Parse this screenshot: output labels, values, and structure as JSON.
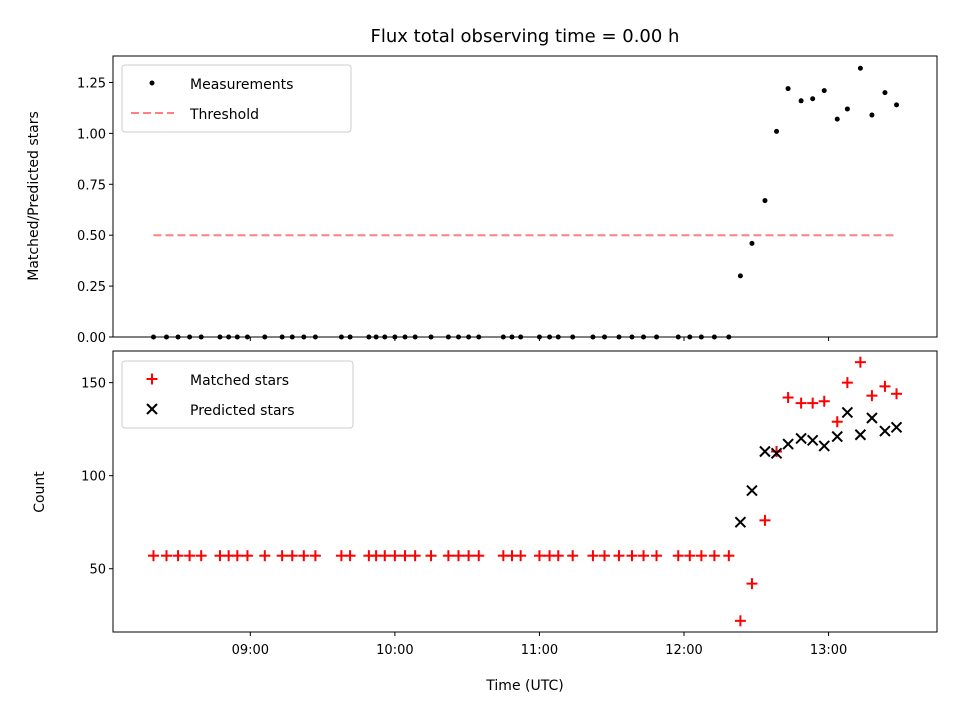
{
  "chart_data": {
    "type": "scatter",
    "title": "Flux total observing time = 0.00 h",
    "xlabel": "Time (UTC)",
    "x_ticks": [
      "09:00",
      "10:00",
      "11:00",
      "12:00",
      "13:00"
    ],
    "x_tick_hours": [
      9,
      10,
      11,
      12,
      13
    ],
    "xlim": [
      8.05,
      13.75
    ],
    "times": [
      8.33,
      8.42,
      8.5,
      8.58,
      8.66,
      8.79,
      8.85,
      8.91,
      8.98,
      9.1,
      9.22,
      9.29,
      9.37,
      9.45,
      9.63,
      9.69,
      9.82,
      9.87,
      9.93,
      10.0,
      10.07,
      10.14,
      10.25,
      10.37,
      10.44,
      10.51,
      10.58,
      10.75,
      10.81,
      10.87,
      11.0,
      11.07,
      11.13,
      11.23,
      11.37,
      11.45,
      11.55,
      11.64,
      11.72,
      11.81,
      11.96,
      12.04,
      12.12,
      12.21,
      12.31,
      12.39,
      12.47,
      12.56,
      12.64,
      12.72,
      12.81,
      12.89,
      12.97,
      13.06,
      13.13,
      13.22,
      13.3,
      13.39,
      13.47
    ],
    "panels": [
      {
        "ylabel": "Matched/Predicted stars",
        "ylim": [
          0,
          1.38
        ],
        "y_ticks": [
          "0.00",
          "0.25",
          "0.50",
          "0.75",
          "1.00",
          "1.25"
        ],
        "y_tick_values": [
          0,
          0.25,
          0.5,
          0.75,
          1.0,
          1.25
        ],
        "series": [
          {
            "name": "Measurements",
            "marker": "dot",
            "color": "#000000",
            "values": [
              0,
              0,
              0,
              0,
              0,
              0,
              0,
              0,
              0,
              0,
              0,
              0,
              0,
              0,
              0,
              0,
              0,
              0,
              0,
              0,
              0,
              0,
              0,
              0,
              0,
              0,
              0,
              0,
              0,
              0,
              0,
              0,
              0,
              0,
              0,
              0,
              0,
              0,
              0,
              0,
              0,
              0,
              0,
              0,
              0,
              0.3,
              0.46,
              0.67,
              1.01,
              1.22,
              1.16,
              1.17,
              1.21,
              1.07,
              1.12,
              1.32,
              1.09,
              1.2,
              1.14
            ]
          },
          {
            "name": "Threshold",
            "marker": "dashed-line",
            "color": "#ff7f7f",
            "x_range": [
              8.33,
              13.47
            ],
            "value": 0.5
          }
        ],
        "legend": "top-left"
      },
      {
        "ylabel": "Count",
        "ylim": [
          16,
          167
        ],
        "y_ticks": [
          "50",
          "100",
          "150"
        ],
        "y_tick_values": [
          50,
          100,
          150
        ],
        "series": [
          {
            "name": "Matched stars",
            "marker": "plus",
            "color": "#ff0000",
            "values": [
              57,
              57,
              57,
              57,
              57,
              57,
              57,
              57,
              57,
              57,
              57,
              57,
              57,
              57,
              57,
              57,
              57,
              57,
              57,
              57,
              57,
              57,
              57,
              57,
              57,
              57,
              57,
              57,
              57,
              57,
              57,
              57,
              57,
              57,
              57,
              57,
              57,
              57,
              57,
              57,
              57,
              57,
              57,
              57,
              57,
              22,
              42,
              76,
              113,
              142,
              139,
              139,
              140,
              129,
              150,
              161,
              143,
              148,
              144
            ]
          },
          {
            "name": "Predicted stars",
            "marker": "x",
            "color": "#000000",
            "times": [
              12.39,
              12.47,
              12.56,
              12.64,
              12.72,
              12.81,
              12.89,
              12.97,
              13.06,
              13.13,
              13.22,
              13.3,
              13.39,
              13.47
            ],
            "values": [
              75,
              92,
              113,
              112,
              117,
              120,
              119,
              116,
              121,
              134,
              122,
              131,
              124,
              126
            ]
          }
        ],
        "legend": "top-left"
      }
    ]
  }
}
